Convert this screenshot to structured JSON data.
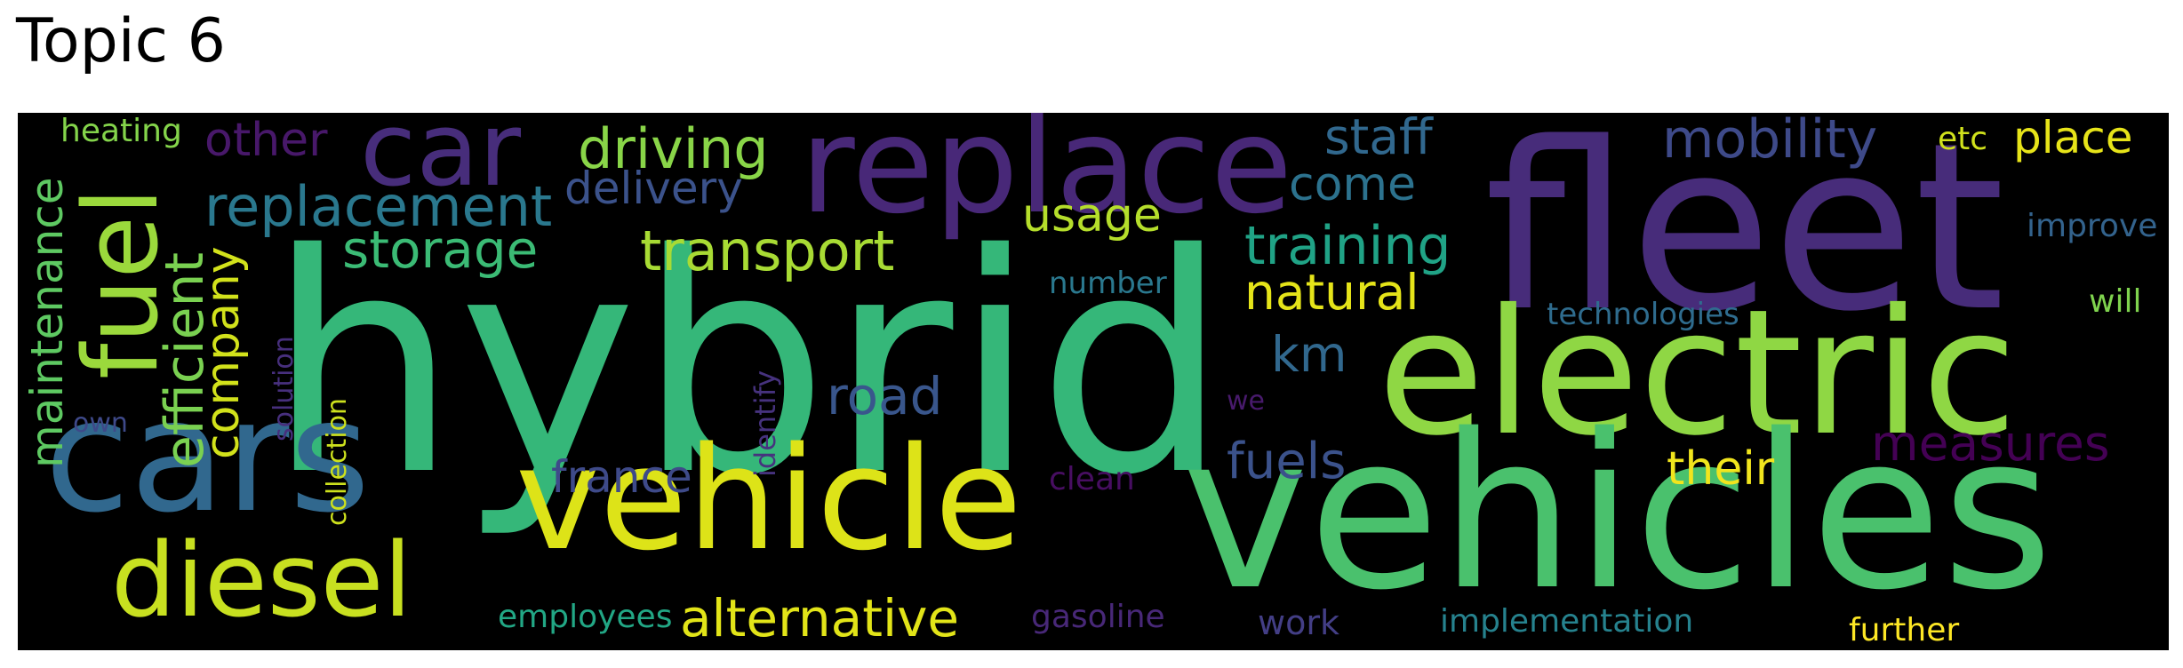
{
  "title": "Topic 6",
  "words": [
    {
      "text": "hybrid",
      "color": "#35b779"
    },
    {
      "text": "fleet",
      "color": "#472c7a"
    },
    {
      "text": "electric",
      "color": "#8fd744"
    },
    {
      "text": "vehicles",
      "color": "#4ac16d"
    },
    {
      "text": "vehicle",
      "color": "#dde318"
    },
    {
      "text": "cars",
      "color": "#31688e"
    },
    {
      "text": "replace",
      "color": "#482878"
    },
    {
      "text": "car",
      "color": "#472d7b"
    },
    {
      "text": "diesel",
      "color": "#c8e020"
    },
    {
      "text": "fuel",
      "color": "#9bd93c"
    },
    {
      "text": "efficient",
      "color": "#7ad151"
    },
    {
      "text": "maintenance",
      "color": "#5ec962"
    },
    {
      "text": "company",
      "color": "#d2e21b"
    },
    {
      "text": "replacement",
      "color": "#2a788e"
    },
    {
      "text": "storage",
      "color": "#3bbb75"
    },
    {
      "text": "transport",
      "color": "#a8db34"
    },
    {
      "text": "driving",
      "color": "#89d548"
    },
    {
      "text": "delivery",
      "color": "#3b528b"
    },
    {
      "text": "other",
      "color": "#48186a"
    },
    {
      "text": "usage",
      "color": "#b5de2b"
    },
    {
      "text": "staff",
      "color": "#31688e"
    },
    {
      "text": "come",
      "color": "#2c728e"
    },
    {
      "text": "mobility",
      "color": "#3e4a89"
    },
    {
      "text": "etc",
      "color": "#d0e11c"
    },
    {
      "text": "place",
      "color": "#e7e419"
    },
    {
      "text": "training",
      "color": "#20a386"
    },
    {
      "text": "natural",
      "color": "#e5e419"
    },
    {
      "text": "km",
      "color": "#31688e"
    },
    {
      "text": "road",
      "color": "#39568c"
    },
    {
      "text": "fuels",
      "color": "#3b528b"
    },
    {
      "text": "measures",
      "color": "#440154"
    },
    {
      "text": "their",
      "color": "#f1e51d"
    },
    {
      "text": "france",
      "color": "#3e4a89"
    },
    {
      "text": "alternative",
      "color": "#e2e418"
    },
    {
      "text": "gasoline",
      "color": "#482878"
    },
    {
      "text": "employees",
      "color": "#22a785"
    },
    {
      "text": "heating",
      "color": "#84d44b"
    },
    {
      "text": "own",
      "color": "#3e4989"
    },
    {
      "text": "solution",
      "color": "#472f7d"
    },
    {
      "text": "collection",
      "color": "#cde11d"
    },
    {
      "text": "identify",
      "color": "#46327e"
    },
    {
      "text": "number",
      "color": "#2a788e"
    },
    {
      "text": "we",
      "color": "#481a6c"
    },
    {
      "text": "clean",
      "color": "#470e61"
    },
    {
      "text": "work",
      "color": "#433e85"
    },
    {
      "text": "implementation",
      "color": "#26828e"
    },
    {
      "text": "further",
      "color": "#fde725"
    },
    {
      "text": "technologies",
      "color": "#2f6c8e"
    },
    {
      "text": "improve",
      "color": "#33638d"
    },
    {
      "text": "will",
      "color": "#7fd34e"
    }
  ]
}
